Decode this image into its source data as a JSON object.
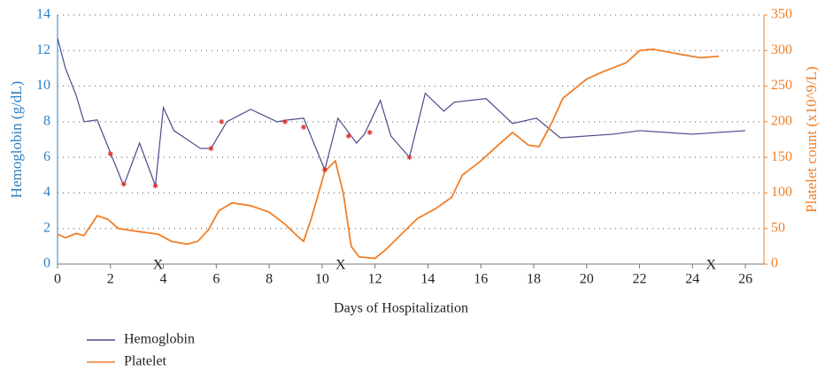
{
  "chart_data": {
    "type": "line",
    "xlabel": "Days of Hospitalization",
    "ylabel": "Hemoglobin (g/dL)",
    "y2label": "Platelet count (x10^9/L)",
    "xlim": [
      0,
      26.7
    ],
    "xticks": [
      0,
      2,
      4,
      6,
      8,
      10,
      12,
      14,
      16,
      18,
      20,
      22,
      24,
      26
    ],
    "ylim": [
      0,
      14
    ],
    "yticks": [
      0,
      2,
      4,
      6,
      8,
      10,
      12,
      14
    ],
    "y2lim": [
      0,
      350
    ],
    "y2ticks": [
      0,
      50,
      100,
      150,
      200,
      250,
      300,
      350
    ],
    "grid": true,
    "ycolor": "#2f7fc1",
    "y2color": "#f07f28",
    "series": [
      {
        "name": "Hemoglobin",
        "color": "#4a4a8c",
        "axis": "y",
        "x": [
          0,
          0.3,
          0.7,
          1,
          1.5,
          2.5,
          3.1,
          3.7,
          4,
          4.4,
          5.4,
          5.8,
          6.4,
          7.3,
          8.3,
          8.7,
          9.3,
          10.1,
          10.6,
          11.3,
          11.6,
          12.2,
          12.6,
          13.3,
          13.9,
          14.6,
          15,
          16.2,
          17.2,
          18.1,
          19,
          21,
          22,
          24,
          25,
          26
        ],
        "values": [
          12.7,
          11,
          9.5,
          8,
          8.1,
          4.4,
          6.8,
          4.4,
          8.8,
          7.5,
          6.5,
          6.5,
          8,
          8.7,
          8,
          8.1,
          8.2,
          5.3,
          8.2,
          6.8,
          7.3,
          9.2,
          7.2,
          6,
          9.6,
          8.6,
          9.1,
          9.3,
          7.9,
          8.2,
          7.1,
          7.3,
          7.5,
          7.3,
          7.4,
          7.5
        ]
      },
      {
        "name": "Platelet",
        "color": "#f07f28",
        "axis": "y2",
        "x": [
          0,
          0.3,
          0.7,
          1,
          1.5,
          1.9,
          2.3,
          3,
          3.8,
          4.3,
          4.9,
          5.3,
          5.7,
          6.1,
          6.6,
          7.3,
          8,
          8.6,
          9.1,
          9.3,
          9.6,
          10.1,
          10.5,
          10.8,
          11.1,
          11.4,
          12,
          12.4,
          13,
          13.6,
          14.3,
          14.9,
          15.3,
          16,
          16.5,
          17.2,
          17.8,
          18.2,
          18.7,
          19.1,
          20,
          20.6,
          21.5,
          22,
          22.5,
          23.5,
          24.3,
          25
        ],
        "values": [
          42,
          37,
          43,
          40,
          68,
          63,
          50,
          46,
          42,
          32,
          28,
          32,
          48,
          75,
          86,
          82,
          73,
          56,
          38,
          32,
          65,
          130,
          145,
          100,
          25,
          10,
          8,
          20,
          42,
          64,
          78,
          94,
          125,
          145,
          162,
          185,
          167,
          165,
          200,
          233,
          260,
          270,
          283,
          300,
          302,
          295,
          290,
          292
        ]
      }
    ],
    "markers": {
      "color": "#e0302a",
      "x": [
        2,
        2.5,
        3.7,
        5.8,
        6.2,
        8.6,
        9.3,
        10.1,
        11,
        11.8,
        13.3
      ],
      "values": [
        6.2,
        4.5,
        4.4,
        6.5,
        8,
        8,
        7.7,
        5.3,
        7.2,
        7.4,
        6
      ]
    },
    "annotations": [
      {
        "text": "X",
        "x": 3.8
      },
      {
        "text": "X",
        "x": 10.7
      },
      {
        "text": "X",
        "x": 24.7
      }
    ]
  }
}
